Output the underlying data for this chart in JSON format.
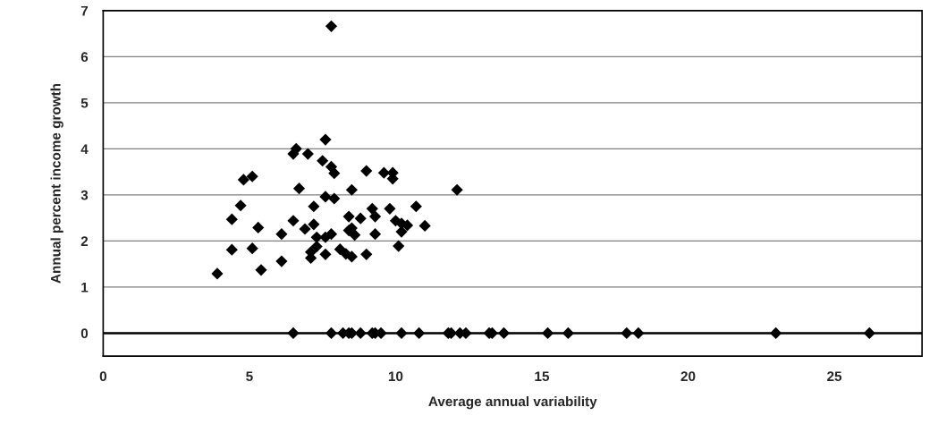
{
  "chart_data": {
    "type": "scatter",
    "xlabel": "Average annual variability",
    "ylabel": "Annual percent income growth",
    "x": [
      7.8,
      7.6,
      6.6,
      6.5,
      7.0,
      7.5,
      7.8,
      7.9,
      9.0,
      9.6,
      9.9,
      9.9,
      4.8,
      5.1,
      6.7,
      8.5,
      12.1,
      7.6,
      7.9,
      4.7,
      7.2,
      9.2,
      9.8,
      10.7,
      4.4,
      6.5,
      8.4,
      8.8,
      9.3,
      10.0,
      10.2,
      10.4,
      11.0,
      5.3,
      7.2,
      6.9,
      6.1,
      8.4,
      8.5,
      8.6,
      9.3,
      10.2,
      7.3,
      7.6,
      7.8,
      7.3,
      10.1,
      4.4,
      5.1,
      7.1,
      7.1,
      7.6,
      8.1,
      8.3,
      8.5,
      9.0,
      6.1,
      5.4,
      3.9,
      6.5,
      7.8,
      8.2,
      8.4,
      8.5,
      8.8,
      9.2,
      9.3,
      9.5,
      10.2,
      10.8,
      11.8,
      11.9,
      12.2,
      12.4,
      13.2,
      13.3,
      13.7,
      15.2,
      15.9,
      17.9,
      18.3,
      23.0,
      26.2
    ],
    "values": [
      6.66,
      4.2,
      4.0,
      3.89,
      3.89,
      3.74,
      3.61,
      3.47,
      3.52,
      3.48,
      3.48,
      3.35,
      3.33,
      3.4,
      3.14,
      3.11,
      3.11,
      2.96,
      2.92,
      2.77,
      2.75,
      2.7,
      2.7,
      2.75,
      2.47,
      2.44,
      2.53,
      2.49,
      2.53,
      2.44,
      2.38,
      2.34,
      2.33,
      2.29,
      2.36,
      2.26,
      2.15,
      2.23,
      2.28,
      2.13,
      2.15,
      2.2,
      2.08,
      2.08,
      2.15,
      1.88,
      1.89,
      1.81,
      1.84,
      1.76,
      1.63,
      1.71,
      1.82,
      1.72,
      1.66,
      1.71,
      1.56,
      1.37,
      1.29,
      0,
      0,
      0,
      0,
      0,
      0,
      0,
      0,
      0,
      0,
      0,
      0,
      0,
      0,
      0,
      0,
      0,
      0,
      0,
      0,
      0,
      0,
      0,
      0
    ],
    "color": "#000000",
    "marker": "diamond",
    "grid": "y",
    "xlim": [
      0,
      28
    ],
    "ylim": [
      -0.5,
      7
    ],
    "xticks": [
      0,
      5,
      10,
      15,
      20,
      25
    ],
    "yticks": [
      0,
      1,
      2,
      3,
      4,
      5,
      6,
      7
    ],
    "ref_lines": [
      {
        "axis": "y",
        "value": 0,
        "color": "#000000"
      }
    ]
  }
}
